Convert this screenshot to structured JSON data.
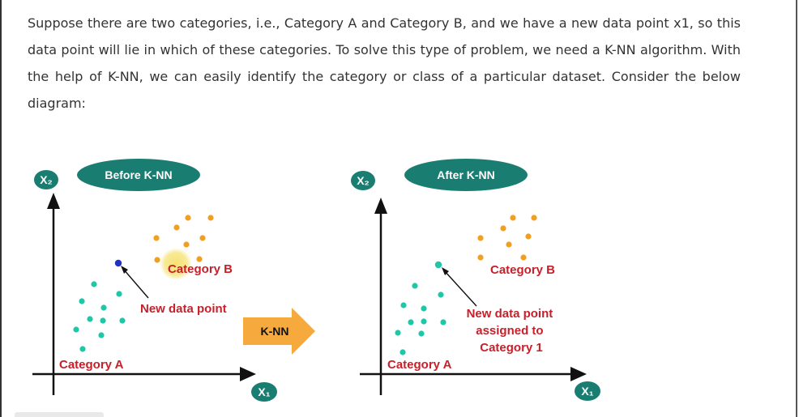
{
  "paragraph": "Suppose there are two categories, i.e., Category A and Category B, and we have a new data point x1, so this data point will lie in which of these categories. To solve this type of problem, we need a K-NN algorithm. With the help of K-NN, we can easily identify the category or class of a particular dataset. Consider the below diagram:",
  "left_panel": {
    "title": "Before K-NN",
    "y_axis": "X₂",
    "x_axis": "X₁",
    "category_a_label": "Category A",
    "category_b_label": "Category B",
    "new_point_label": "New data point"
  },
  "arrow_label": "K-NN",
  "right_panel": {
    "title": "After K-NN",
    "y_axis": "X₂",
    "x_axis": "X₁",
    "category_a_label": "Category A",
    "category_b_label": "Category B",
    "new_point_label_lines": [
      "New data point",
      "assigned to",
      "Category 1"
    ]
  },
  "colors": {
    "teal": "#1a7d72",
    "category_a_dot": "#1fc7a8",
    "category_b_dot": "#f0a020",
    "new_point": "#2030c8",
    "red_text": "#c8202a",
    "orange_arrow": "#f6a93c",
    "cursor_highlight": "#f5e06a"
  }
}
